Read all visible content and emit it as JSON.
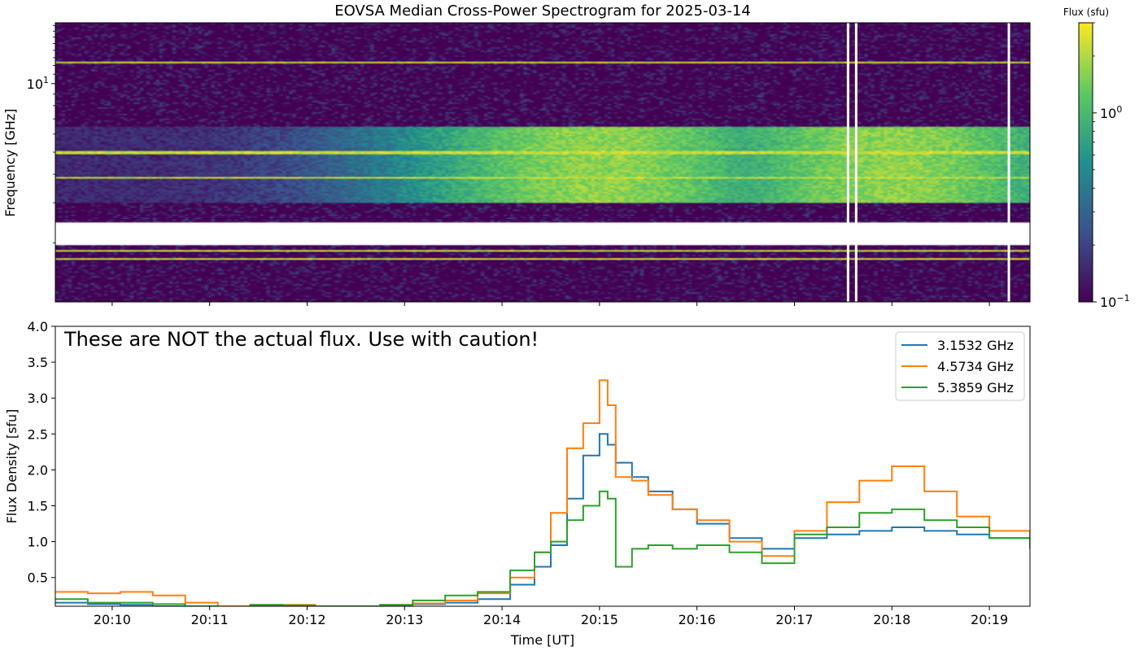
{
  "chart_data": [
    {
      "type": "heatmap",
      "title": "EOVSA Median Cross-Power Spectrogram for 2025-03-14",
      "ylabel": "Frequency [GHz]",
      "y_scale": "log",
      "ylim": [
        1.1,
        18.5
      ],
      "y_ticks": [
        {
          "value": 10,
          "label": "10",
          "exp": "1"
        }
      ],
      "x_range": [
        "20:09:25",
        "20:19:25"
      ],
      "colorbar": {
        "label": "Flux (sfu)",
        "scale": "log",
        "range": [
          0.1,
          3.0
        ],
        "colormap": "viridis",
        "ticks": [
          {
            "value": 1,
            "label": "10",
            "exp": "0"
          },
          {
            "value": 0.1,
            "label": "10",
            "exp": "−1"
          }
        ]
      },
      "persistent_bright_freqs_ghz": [
        12.4,
        5.0,
        3.85,
        1.84,
        1.7
      ],
      "broadband_bursts": [
        {
          "peak_time": "20:15:00",
          "freq_range_ghz": [
            3.0,
            6.5
          ]
        },
        {
          "peak_time": "20:18:00",
          "freq_range_ghz": [
            3.0,
            6.5
          ]
        }
      ],
      "data_gap_band_ghz": [
        1.95,
        2.45
      ],
      "blank_time_columns": [
        "20:17:33",
        "20:17:38",
        "20:19:12"
      ]
    },
    {
      "type": "line",
      "annotation": "These are NOT the actual flux. Use with caution!",
      "xlabel": "Time [UT]",
      "ylabel": "Flux Density [sfu]",
      "ylim": [
        0.1,
        4.0
      ],
      "y_ticks": [
        0.5,
        1.0,
        1.5,
        2.0,
        2.5,
        3.0,
        3.5,
        4.0
      ],
      "y_tick_labels": [
        "0.5",
        "1.0",
        "1.5",
        "2.0",
        "2.5",
        "3.0",
        "3.5",
        "4.0"
      ],
      "x_range": [
        "20:09:25",
        "20:19:25"
      ],
      "x_ticks": [
        "20:10",
        "20:11",
        "20:12",
        "20:13",
        "20:14",
        "20:15",
        "20:16",
        "20:17",
        "20:18",
        "20:19"
      ],
      "x_tick_times": [
        "20:10:00",
        "20:11:00",
        "20:12:00",
        "20:13:00",
        "20:14:00",
        "20:15:00",
        "20:16:00",
        "20:17:00",
        "20:18:00",
        "20:19:00"
      ],
      "legend_position": "top-right",
      "x_times": [
        "20:09:25",
        "20:09:45",
        "20:10:05",
        "20:10:25",
        "20:10:45",
        "20:11:05",
        "20:11:25",
        "20:11:45",
        "20:12:05",
        "20:12:25",
        "20:12:45",
        "20:13:05",
        "20:13:25",
        "20:13:45",
        "20:14:05",
        "20:14:20",
        "20:14:30",
        "20:14:40",
        "20:14:50",
        "20:15:00",
        "20:15:05",
        "20:15:10",
        "20:15:20",
        "20:15:30",
        "20:15:45",
        "20:16:00",
        "20:16:20",
        "20:16:40",
        "20:17:00",
        "20:17:20",
        "20:17:40",
        "20:18:00",
        "20:18:20",
        "20:18:40",
        "20:19:00",
        "20:19:25"
      ],
      "series": [
        {
          "name": "3.1532 GHz",
          "color": "#1f77b4",
          "values": [
            0.15,
            0.13,
            0.12,
            0.1,
            0.1,
            0.09,
            0.1,
            0.11,
            0.1,
            0.09,
            0.1,
            0.13,
            0.15,
            0.2,
            0.4,
            0.65,
            0.95,
            1.6,
            2.2,
            2.5,
            2.35,
            2.1,
            1.9,
            1.7,
            1.45,
            1.25,
            1.05,
            0.9,
            1.05,
            1.1,
            1.15,
            1.2,
            1.15,
            1.1,
            1.05,
            1.0
          ]
        },
        {
          "name": "4.5734 GHz",
          "color": "#ff7f0e",
          "values": [
            0.3,
            0.28,
            0.3,
            0.25,
            0.15,
            0.1,
            0.12,
            0.12,
            0.1,
            0.1,
            0.12,
            0.14,
            0.18,
            0.28,
            0.5,
            0.85,
            1.4,
            2.3,
            2.65,
            3.25,
            2.9,
            1.9,
            1.85,
            1.65,
            1.45,
            1.3,
            1.0,
            0.8,
            1.15,
            1.55,
            1.85,
            2.05,
            1.7,
            1.35,
            1.15,
            0.95
          ]
        },
        {
          "name": "5.3859 GHz",
          "color": "#2ca02c",
          "values": [
            0.2,
            0.15,
            0.15,
            0.13,
            0.1,
            0.09,
            0.12,
            0.11,
            0.1,
            0.1,
            0.12,
            0.18,
            0.25,
            0.3,
            0.6,
            0.85,
            1.0,
            1.3,
            1.5,
            1.7,
            1.6,
            0.65,
            0.9,
            0.95,
            0.9,
            0.95,
            0.85,
            0.7,
            1.1,
            1.2,
            1.4,
            1.45,
            1.3,
            1.2,
            1.05,
            0.9
          ]
        }
      ]
    }
  ]
}
